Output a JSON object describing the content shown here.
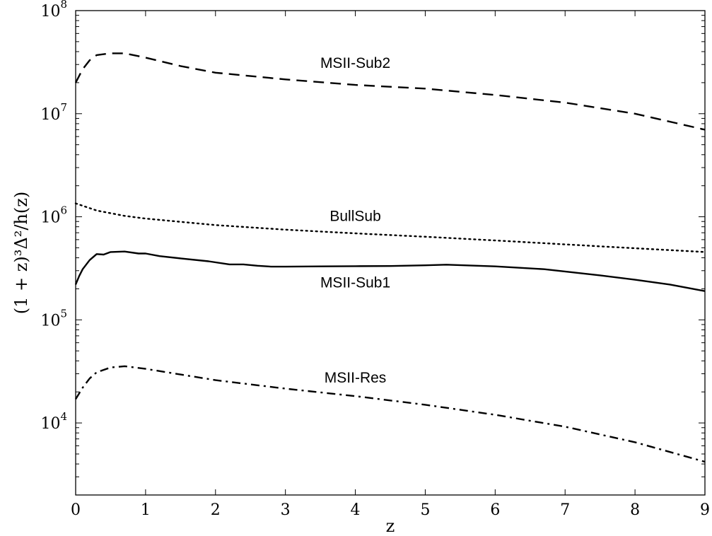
{
  "chart_data": {
    "type": "line",
    "xlabel": "z",
    "ylabel": "(1 + z)³Δ²/h(z)",
    "xlim": [
      0,
      9
    ],
    "ylim": [
      2000,
      100000000
    ],
    "yscale": "log",
    "grid": false,
    "legend": "none",
    "x_ticks": [
      "0",
      "1",
      "2",
      "3",
      "4",
      "5",
      "6",
      "7",
      "8",
      "9"
    ],
    "y_ticks": [
      {
        "base": "10",
        "exp": "4"
      },
      {
        "base": "10",
        "exp": "5"
      },
      {
        "base": "10",
        "exp": "6"
      },
      {
        "base": "10",
        "exp": "7"
      },
      {
        "base": "10",
        "exp": "8"
      }
    ],
    "series": [
      {
        "name": "MSII-Sub2",
        "dash": "dashed",
        "label_at": [
          4,
          31000000
        ],
        "x": [
          0,
          0.1,
          0.2,
          0.3,
          0.5,
          0.7,
          1.0,
          1.5,
          2.0,
          3.0,
          4.0,
          5.0,
          6.0,
          7.0,
          8.0,
          9.0
        ],
        "y": [
          20000000,
          27000000,
          33000000,
          37000000,
          38500000,
          38500000,
          35000000,
          29000000,
          25000000,
          21500000,
          19000000,
          17500000,
          15200000,
          12800000,
          10000000,
          7000000
        ]
      },
      {
        "name": "BullSub",
        "dash": "dotted",
        "label_at": [
          4,
          1020000
        ],
        "x": [
          0,
          0.3,
          0.7,
          1.0,
          2.0,
          3.0,
          4.0,
          5.0,
          6.0,
          7.0,
          8.0,
          9.0
        ],
        "y": [
          1350000,
          1150000,
          1020000,
          960000,
          830000,
          750000,
          690000,
          640000,
          590000,
          540000,
          495000,
          455000
        ]
      },
      {
        "name": "MSII-Sub1",
        "dash": "solid",
        "label_at": [
          4,
          230000
        ],
        "x": [
          0,
          0.05,
          0.1,
          0.2,
          0.3,
          0.4,
          0.5,
          0.7,
          0.9,
          1.0,
          1.2,
          1.5,
          1.9,
          2.2,
          2.4,
          2.6,
          2.8,
          3.0,
          3.5,
          4.0,
          4.5,
          5.0,
          5.3,
          6.0,
          6.7,
          7.5,
          8.0,
          8.5,
          9.0
        ],
        "y": [
          220000,
          265000,
          310000,
          380000,
          435000,
          430000,
          455000,
          460000,
          440000,
          440000,
          415000,
          395000,
          370000,
          345000,
          345000,
          335000,
          328000,
          328000,
          330000,
          332000,
          333000,
          338000,
          343000,
          330000,
          310000,
          270000,
          245000,
          220000,
          190000
        ]
      },
      {
        "name": "MSII-Res",
        "dash": "dashdot",
        "label_at": [
          4,
          27500
        ],
        "x": [
          0,
          0.1,
          0.2,
          0.3,
          0.5,
          0.7,
          1.0,
          1.5,
          2.0,
          3.0,
          4.0,
          5.0,
          6.0,
          7.0,
          8.0,
          9.0
        ],
        "y": [
          17000,
          22000,
          27000,
          31000,
          34500,
          35500,
          33500,
          29500,
          26000,
          21500,
          18200,
          15000,
          12000,
          9200,
          6500,
          4200
        ]
      }
    ]
  }
}
